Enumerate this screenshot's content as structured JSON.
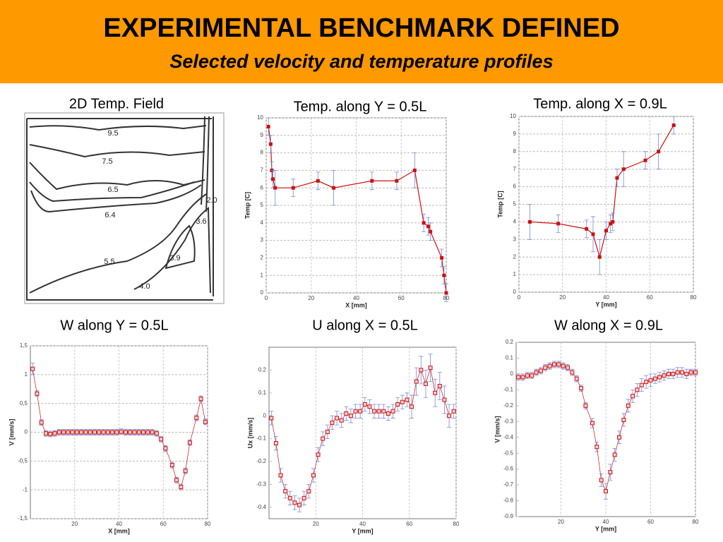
{
  "header": {
    "title": "EXPERIMENTAL BENCHMARK DEFINED",
    "subtitle": "Selected velocity and temperature profiles"
  },
  "contour": {
    "title": "2D Temp. Field",
    "labels": [
      "9.5",
      "7.5",
      "6.5",
      "6.4",
      "5.5",
      "3.9",
      "4.0",
      "3.6",
      "2.0"
    ]
  },
  "chart_data": [
    {
      "type": "line",
      "title": "Temp. along Y = 0.5L",
      "xlabel": "X [mm]",
      "ylabel": "Temp [C]",
      "xlim": [
        0,
        80
      ],
      "ylim": [
        0,
        10
      ],
      "xticks": [
        0,
        20,
        40,
        60,
        80
      ],
      "yticks": [
        0,
        1,
        2,
        3,
        4,
        5,
        6,
        7,
        8,
        9,
        10
      ],
      "grid": true,
      "marker": "filled",
      "series": [
        {
          "color": "#cc1111",
          "x": [
            1,
            2,
            2.5,
            3,
            4,
            12,
            23,
            30,
            47,
            58,
            66,
            70,
            72,
            73,
            78,
            79,
            80
          ],
          "values": [
            9.5,
            8.5,
            7,
            6.5,
            6,
            6,
            6.4,
            6,
            6.4,
            6.4,
            7,
            4,
            3.8,
            3.5,
            2,
            1,
            0
          ],
          "errors": [
            0.5,
            0.5,
            0.5,
            0.5,
            1,
            0.5,
            0.5,
            1,
            0.5,
            0.5,
            1,
            0.5,
            0.5,
            0.5,
            0.5,
            0.5,
            0.5
          ]
        }
      ]
    },
    {
      "type": "line",
      "title": "Temp. along X = 0.9L",
      "xlabel": "Y [mm]",
      "ylabel": "Temp [C]",
      "xlim": [
        0,
        80
      ],
      "ylim": [
        0,
        10
      ],
      "xticks": [
        0,
        20,
        40,
        60,
        80
      ],
      "yticks": [
        0,
        1,
        2,
        3,
        4,
        5,
        6,
        7,
        8,
        9,
        10
      ],
      "grid": true,
      "marker": "filled",
      "series": [
        {
          "color": "#cc1111",
          "x": [
            5,
            18,
            31,
            34,
            37,
            40,
            42,
            43,
            45,
            48,
            58,
            64,
            71
          ],
          "values": [
            4,
            3.9,
            3.6,
            3.3,
            2,
            3.5,
            3.9,
            4,
            6.5,
            7,
            7.5,
            8,
            9.5
          ],
          "errors": [
            1,
            0.5,
            0.5,
            1,
            1,
            0.5,
            0.5,
            0.5,
            0.5,
            1,
            0.5,
            1,
            0.5
          ]
        }
      ]
    },
    {
      "type": "line",
      "title": "W along Y = 0.5L",
      "xlabel": "X [mm]",
      "ylabel": "V [mm/s]",
      "xlim": [
        0,
        80
      ],
      "ylim": [
        -1.5,
        1.5
      ],
      "xticks": [
        20,
        40,
        60,
        80
      ],
      "yticks": [
        {
          "value": -1.5,
          "label": "-1,5"
        },
        -1,
        {
          "value": -0.5,
          "label": "-0,5"
        },
        0,
        {
          "value": 0.5,
          "label": "0,5"
        },
        1,
        {
          "value": 1.5,
          "label": "1,5"
        }
      ],
      "grid": true,
      "marker": "open",
      "series": [
        {
          "color": "#cc1111",
          "x": [
            1,
            3,
            5,
            7,
            9,
            11,
            13,
            15,
            17,
            19,
            21,
            23,
            25,
            27,
            29,
            31,
            33,
            35,
            37,
            39,
            41,
            43,
            45,
            47,
            49,
            51,
            53,
            55,
            57,
            59,
            61,
            64,
            66,
            68,
            70,
            72,
            75,
            77,
            79
          ],
          "values": [
            1.1,
            0.67,
            0.17,
            -0.02,
            -0.03,
            -0.02,
            0,
            0,
            0,
            0,
            0,
            0,
            0,
            0,
            0,
            0,
            0,
            0,
            0,
            0,
            0.01,
            0,
            0,
            0,
            0,
            0,
            0,
            0,
            -0.02,
            -0.12,
            -0.28,
            -0.57,
            -0.83,
            -0.95,
            -0.67,
            -0.18,
            0.25,
            0.58,
            0.18
          ],
          "errors": [
            0.1,
            0.05,
            0.05,
            0.05,
            0.05,
            0.05,
            0.05,
            0.05,
            0.05,
            0.05,
            0.05,
            0.05,
            0.05,
            0.05,
            0.05,
            0.05,
            0.05,
            0.05,
            0.05,
            0.05,
            0.05,
            0.05,
            0.05,
            0.05,
            0.05,
            0.05,
            0.05,
            0.05,
            0.05,
            0.05,
            0.05,
            0.05,
            0.05,
            0.05,
            0.05,
            0.05,
            0.05,
            0.05,
            0.05
          ]
        }
      ]
    },
    {
      "type": "line",
      "title": "U along X = 0.5L",
      "xlabel": "Y [mm]",
      "ylabel": "Ux [mm/s]",
      "xlim": [
        0,
        80
      ],
      "ylim": [
        -0.45,
        0.3
      ],
      "xticks": [
        20,
        40,
        60,
        80
      ],
      "yticks": [
        -0.4,
        -0.3,
        -0.2,
        -0.1,
        0,
        0.1,
        0.2
      ],
      "grid": false,
      "marker": "open",
      "series": [
        {
          "color": "#cc1111",
          "x": [
            1,
            3,
            5,
            7,
            9,
            11,
            13,
            15,
            17,
            19,
            21,
            23,
            25,
            27,
            29,
            31,
            33,
            35,
            37,
            39,
            41,
            43,
            45,
            47,
            49,
            51,
            53,
            55,
            57,
            59,
            61,
            63,
            65,
            67,
            69,
            71,
            73,
            75,
            77,
            79
          ],
          "values": [
            -0.01,
            -0.12,
            -0.26,
            -0.33,
            -0.36,
            -0.38,
            -0.39,
            -0.36,
            -0.33,
            -0.26,
            -0.17,
            -0.1,
            -0.07,
            -0.03,
            -0.01,
            -0.02,
            0.01,
            0,
            0.02,
            0.02,
            0.05,
            0.04,
            0.02,
            0.02,
            0.02,
            0.01,
            0.02,
            0.05,
            0.06,
            0.07,
            0.04,
            0.15,
            0.2,
            0.14,
            0.21,
            0.1,
            0.13,
            0.07,
            0,
            0.02
          ],
          "errors": [
            0.03,
            0.03,
            0.03,
            0.03,
            0.03,
            0.03,
            0.03,
            0.03,
            0.03,
            0.03,
            0.03,
            0.03,
            0.03,
            0.03,
            0.03,
            0.03,
            0.03,
            0.03,
            0.03,
            0.03,
            0.03,
            0.03,
            0.03,
            0.03,
            0.03,
            0.03,
            0.03,
            0.03,
            0.03,
            0.03,
            0.05,
            0.06,
            0.06,
            0.06,
            0.06,
            0.06,
            0.06,
            0.06,
            0.05,
            0.03
          ]
        }
      ]
    },
    {
      "type": "line",
      "title": "W along X = 0.9L",
      "xlabel": "Y [mm]",
      "ylabel": "V [mm/s]",
      "xlim": [
        0,
        80
      ],
      "ylim": [
        -0.9,
        0.2
      ],
      "xticks": [
        20,
        40,
        60,
        80
      ],
      "yticks": [
        -0.9,
        -0.8,
        -0.7,
        -0.6,
        -0.5,
        -0.4,
        -0.3,
        -0.2,
        -0.1,
        0,
        0.1,
        0.2
      ],
      "grid": false,
      "marker": "open",
      "series": [
        {
          "color": "#cc1111",
          "x": [
            1,
            3,
            5,
            7,
            9,
            11,
            13,
            15,
            17,
            19,
            21,
            23,
            25,
            27,
            29,
            31,
            34,
            36,
            38,
            40,
            42,
            44,
            46,
            48,
            50,
            52,
            54,
            56,
            58,
            60,
            62,
            64,
            66,
            68,
            70,
            72,
            74,
            76,
            78,
            80
          ],
          "values": [
            -0.02,
            -0.02,
            -0.01,
            -0.01,
            0.01,
            0.02,
            0.04,
            0.05,
            0.06,
            0.06,
            0.05,
            0.04,
            0.01,
            -0.03,
            -0.09,
            -0.2,
            -0.31,
            -0.46,
            -0.67,
            -0.74,
            -0.62,
            -0.51,
            -0.4,
            -0.29,
            -0.2,
            -0.14,
            -0.1,
            -0.07,
            -0.05,
            -0.04,
            -0.03,
            -0.02,
            -0.01,
            0,
            0,
            0.01,
            0.01,
            0,
            0.01,
            0.01
          ],
          "errors": [
            0.02,
            0.02,
            0.02,
            0.02,
            0.02,
            0.02,
            0.02,
            0.02,
            0.02,
            0.02,
            0.02,
            0.02,
            0.02,
            0.02,
            0.02,
            0.02,
            0.03,
            0.03,
            0.04,
            0.05,
            0.05,
            0.04,
            0.04,
            0.04,
            0.04,
            0.04,
            0.04,
            0.04,
            0.04,
            0.04,
            0.03,
            0.03,
            0.03,
            0.03,
            0.03,
            0.03,
            0.03,
            0.03,
            0.02,
            0.02
          ]
        }
      ]
    }
  ]
}
